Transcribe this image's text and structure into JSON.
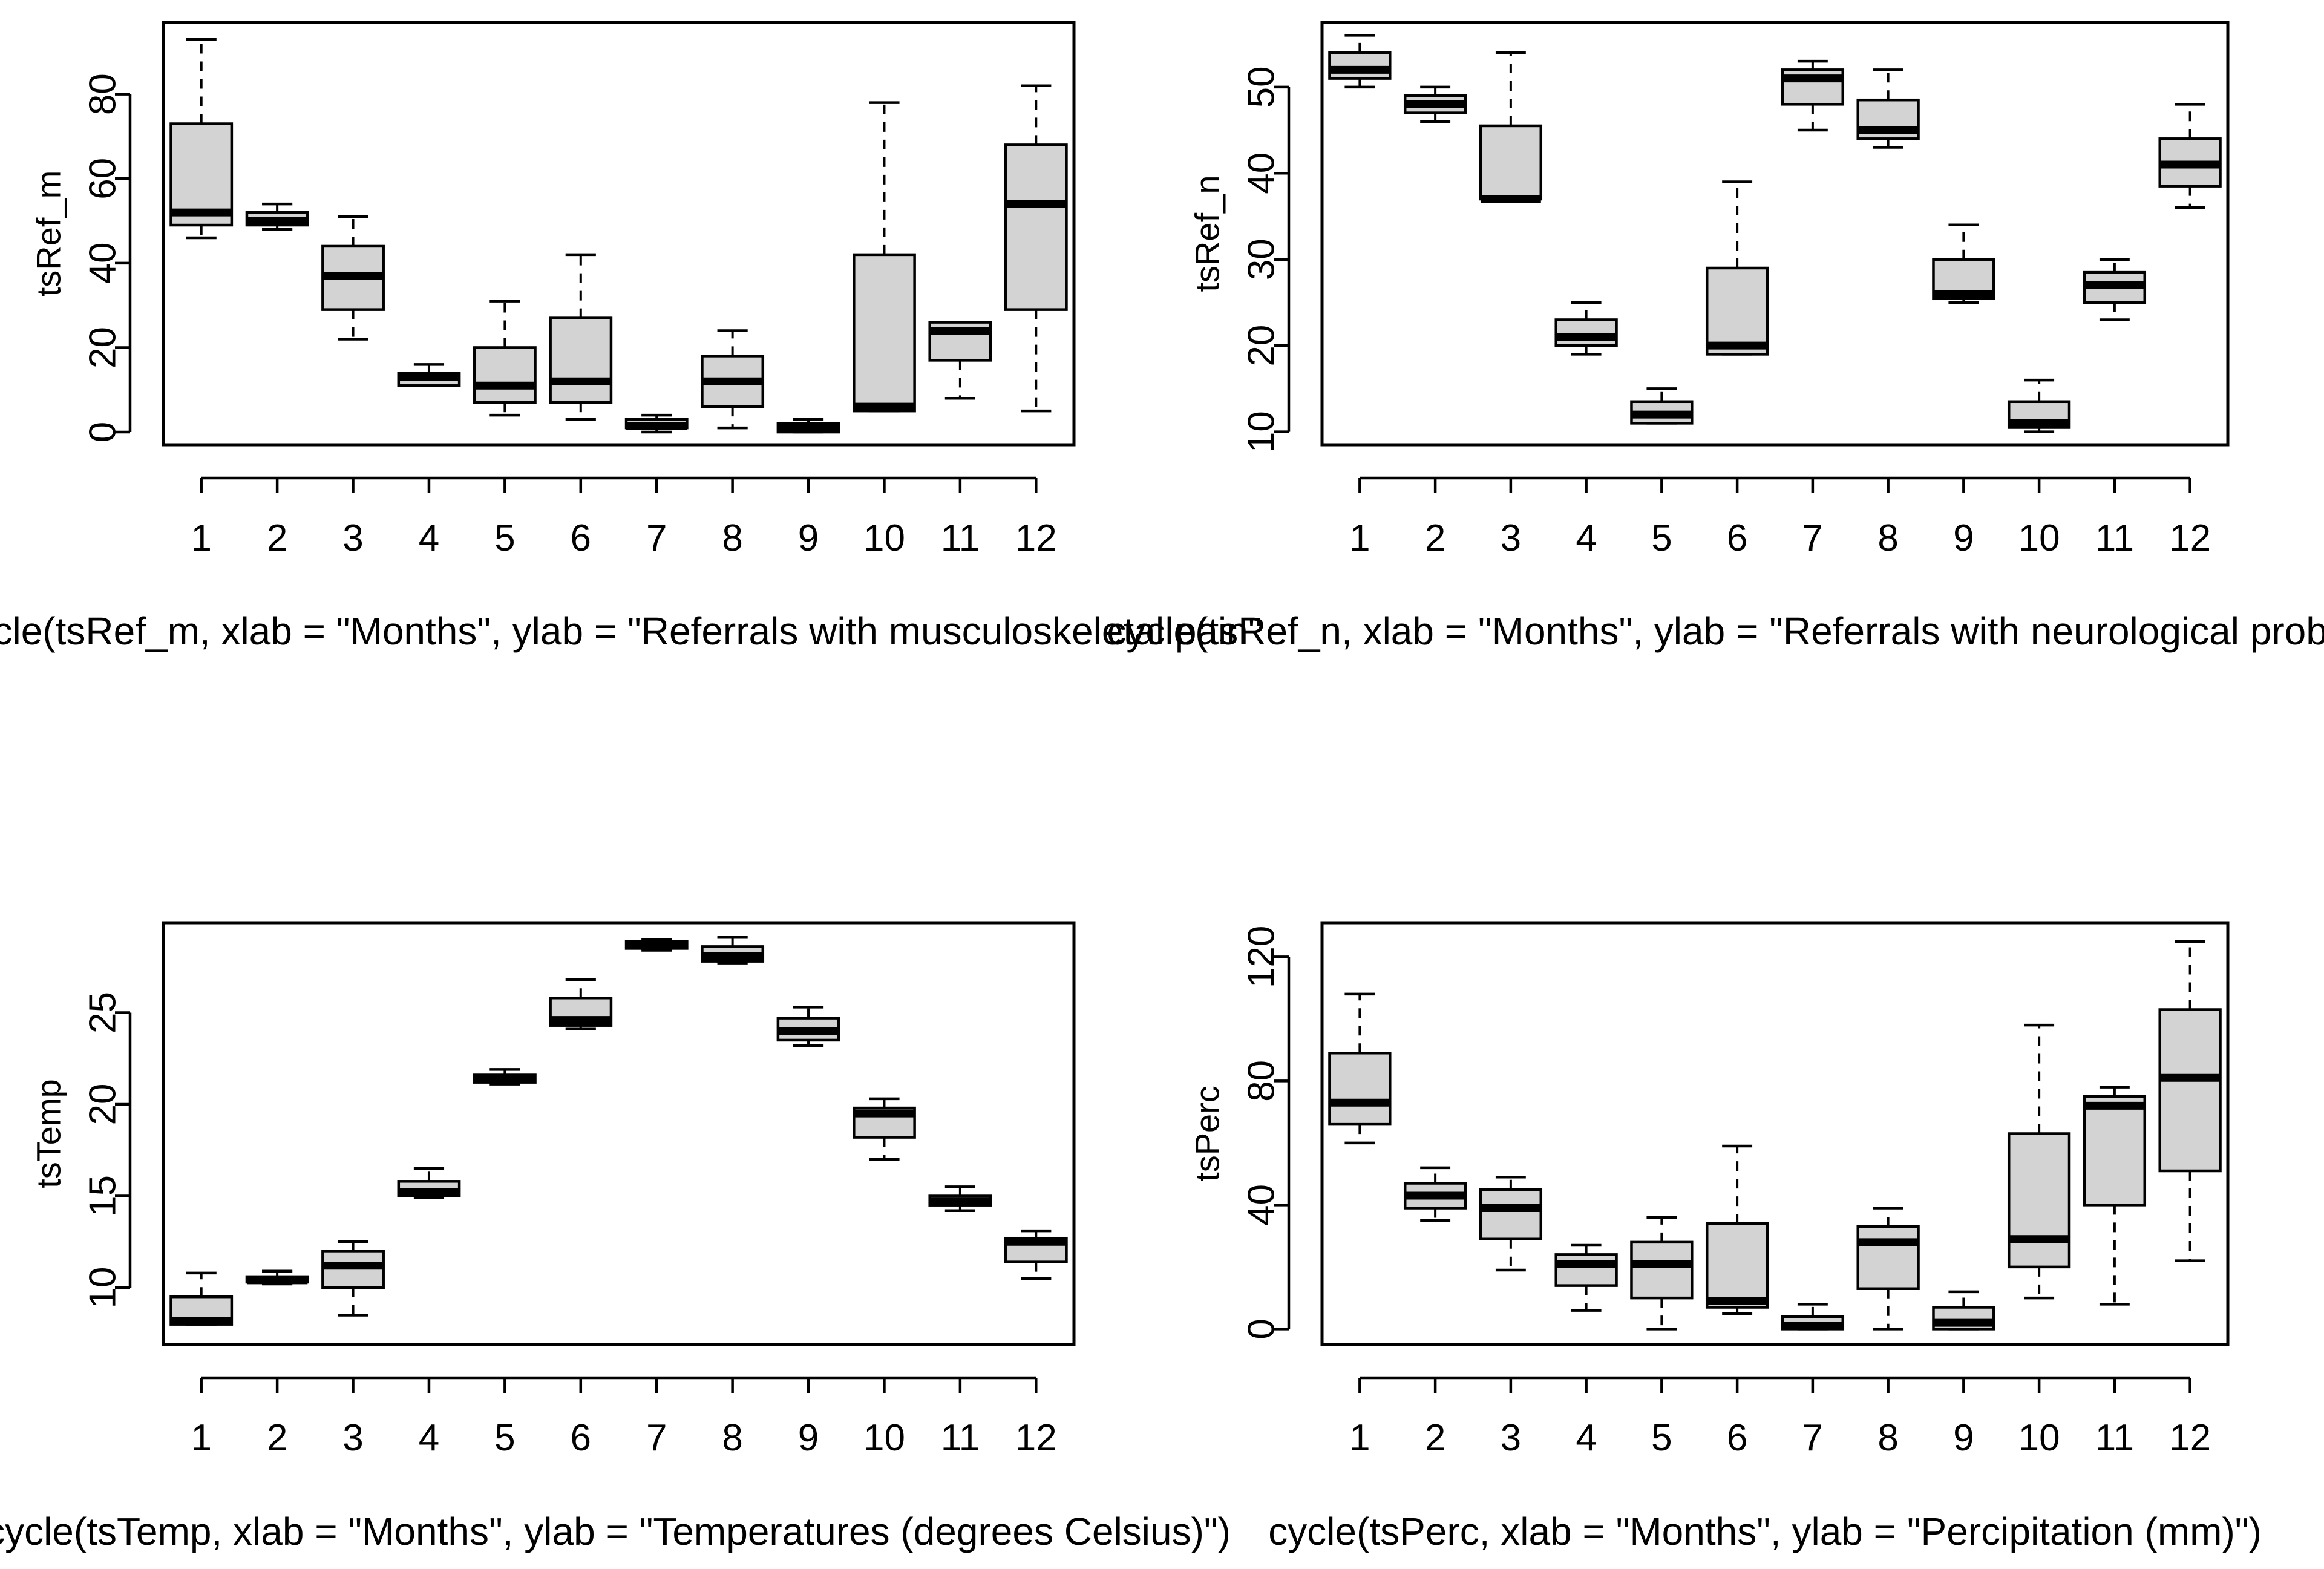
{
  "chart_data": [
    {
      "type": "boxplot",
      "ylabel": "tsRef_m",
      "caption": "cycle(tsRef_m, xlab = \"Months\", ylab = \"Referrals with musculoskeletal pain\"",
      "categories": [
        "1",
        "2",
        "3",
        "4",
        "5",
        "6",
        "7",
        "8",
        "9",
        "10",
        "11",
        "12"
      ],
      "ylim": [
        -3,
        97
      ],
      "yticks": [
        0,
        20,
        40,
        60,
        80
      ],
      "boxes": [
        {
          "min": 46,
          "q1": 49,
          "median": 52,
          "q3": 73,
          "max": 93
        },
        {
          "min": 48,
          "q1": 49,
          "median": 50,
          "q3": 52,
          "max": 54
        },
        {
          "min": 22,
          "q1": 29,
          "median": 37,
          "q3": 44,
          "max": 51
        },
        {
          "min": 11,
          "q1": 11,
          "median": 13,
          "q3": 14,
          "max": 16
        },
        {
          "min": 4,
          "q1": 7,
          "median": 11,
          "q3": 20,
          "max": 31
        },
        {
          "min": 3,
          "q1": 7,
          "median": 12,
          "q3": 27,
          "max": 42
        },
        {
          "min": 0,
          "q1": 1,
          "median": 1.5,
          "q3": 3,
          "max": 4
        },
        {
          "min": 1,
          "q1": 6,
          "median": 12,
          "q3": 18,
          "max": 24
        },
        {
          "min": 0,
          "q1": 0,
          "median": 1,
          "q3": 2,
          "max": 3
        },
        {
          "min": 5,
          "q1": 5,
          "median": 6,
          "q3": 42,
          "max": 78
        },
        {
          "min": 8,
          "q1": 17,
          "median": 24,
          "q3": 26,
          "max": 26
        },
        {
          "min": 5,
          "q1": 29,
          "median": 54,
          "q3": 68,
          "max": 82
        }
      ]
    },
    {
      "type": "boxplot",
      "ylabel": "tsRef_n",
      "caption": "cycle(tsRef_n, xlab = \"Months\", ylab = \"Referrals with neurological problems\"",
      "categories": [
        "1",
        "2",
        "3",
        "4",
        "5",
        "6",
        "7",
        "8",
        "9",
        "10",
        "11",
        "12"
      ],
      "ylim": [
        8.5,
        57.5
      ],
      "yticks": [
        10,
        20,
        30,
        40,
        50
      ],
      "boxes": [
        {
          "min": 50,
          "q1": 51,
          "median": 52,
          "q3": 54,
          "max": 56
        },
        {
          "min": 46,
          "q1": 47,
          "median": 48,
          "q3": 49,
          "max": 50
        },
        {
          "min": 37,
          "q1": 37,
          "median": 37,
          "q3": 45.5,
          "max": 54
        },
        {
          "min": 19,
          "q1": 20,
          "median": 21,
          "q3": 23,
          "max": 25
        },
        {
          "min": 11,
          "q1": 11,
          "median": 12,
          "q3": 13.5,
          "max": 15
        },
        {
          "min": 19,
          "q1": 19,
          "median": 20,
          "q3": 29,
          "max": 39
        },
        {
          "min": 45,
          "q1": 48,
          "median": 51,
          "q3": 52,
          "max": 53
        },
        {
          "min": 43,
          "q1": 44,
          "median": 45,
          "q3": 48.5,
          "max": 52
        },
        {
          "min": 25,
          "q1": 25.5,
          "median": 26,
          "q3": 30,
          "max": 34
        },
        {
          "min": 10,
          "q1": 10.5,
          "median": 11,
          "q3": 13.5,
          "max": 16
        },
        {
          "min": 23,
          "q1": 25,
          "median": 27,
          "q3": 28.5,
          "max": 30
        },
        {
          "min": 36,
          "q1": 38.5,
          "median": 41,
          "q3": 44,
          "max": 48
        }
      ]
    },
    {
      "type": "boxplot",
      "ylabel": "tsTemp",
      "caption": "cycle(tsTemp, xlab = \"Months\", ylab = \"Temperatures (degrees Celsius)\")",
      "categories": [
        "1",
        "2",
        "3",
        "4",
        "5",
        "6",
        "7",
        "8",
        "9",
        "10",
        "11",
        "12"
      ],
      "ylim": [
        6.9,
        29.9
      ],
      "yticks": [
        10,
        15,
        20,
        25
      ],
      "boxes": [
        {
          "min": 8,
          "q1": 8,
          "median": 8.2,
          "q3": 9.5,
          "max": 10.8
        },
        {
          "min": 10.2,
          "q1": 10.3,
          "median": 10.4,
          "q3": 10.6,
          "max": 10.9
        },
        {
          "min": 8.5,
          "q1": 10,
          "median": 11.2,
          "q3": 12,
          "max": 12.5
        },
        {
          "min": 14.9,
          "q1": 15,
          "median": 15.2,
          "q3": 15.8,
          "max": 16.5
        },
        {
          "min": 21.1,
          "q1": 21.2,
          "median": 21.4,
          "q3": 21.6,
          "max": 21.9
        },
        {
          "min": 24.1,
          "q1": 24.3,
          "median": 24.6,
          "q3": 25.8,
          "max": 26.8
        },
        {
          "min": 28.4,
          "q1": 28.5,
          "median": 28.7,
          "q3": 28.9,
          "max": 29
        },
        {
          "min": 27.7,
          "q1": 27.8,
          "median": 28.1,
          "q3": 28.6,
          "max": 29.1
        },
        {
          "min": 23.2,
          "q1": 23.5,
          "median": 24,
          "q3": 24.7,
          "max": 25.3
        },
        {
          "min": 17,
          "q1": 18.2,
          "median": 19.5,
          "q3": 19.8,
          "max": 20.3
        },
        {
          "min": 14.2,
          "q1": 14.5,
          "median": 14.7,
          "q3": 15,
          "max": 15.5
        },
        {
          "min": 10.5,
          "q1": 11.4,
          "median": 12.5,
          "q3": 12.7,
          "max": 13.1
        }
      ]
    },
    {
      "type": "boxplot",
      "ylabel": "tsPerc",
      "caption": "cycle(tsPerc, xlab = \"Months\", ylab = \"Percipitation (mm)\")",
      "categories": [
        "1",
        "2",
        "3",
        "4",
        "5",
        "6",
        "7",
        "8",
        "9",
        "10",
        "11",
        "12"
      ],
      "ylim": [
        -5,
        131
      ],
      "yticks": [
        0,
        40,
        80,
        120
      ],
      "boxes": [
        {
          "min": 60,
          "q1": 66,
          "median": 73,
          "q3": 89,
          "max": 108
        },
        {
          "min": 35,
          "q1": 39,
          "median": 43,
          "q3": 47,
          "max": 52
        },
        {
          "min": 19,
          "q1": 29,
          "median": 39,
          "q3": 45,
          "max": 49
        },
        {
          "min": 6,
          "q1": 14,
          "median": 21,
          "q3": 24,
          "max": 27
        },
        {
          "min": 0,
          "q1": 10,
          "median": 21,
          "q3": 28,
          "max": 36
        },
        {
          "min": 5,
          "q1": 7,
          "median": 9,
          "q3": 34,
          "max": 59
        },
        {
          "min": 0,
          "q1": 0,
          "median": 1,
          "q3": 4,
          "max": 8
        },
        {
          "min": 0,
          "q1": 13,
          "median": 28,
          "q3": 33,
          "max": 39
        },
        {
          "min": 0,
          "q1": 0,
          "median": 2,
          "q3": 7,
          "max": 12
        },
        {
          "min": 10,
          "q1": 20,
          "median": 29,
          "q3": 63,
          "max": 98
        },
        {
          "min": 8,
          "q1": 40,
          "median": 72,
          "q3": 75,
          "max": 78
        },
        {
          "min": 22,
          "q1": 51,
          "median": 81,
          "q3": 103,
          "max": 125
        }
      ]
    }
  ]
}
